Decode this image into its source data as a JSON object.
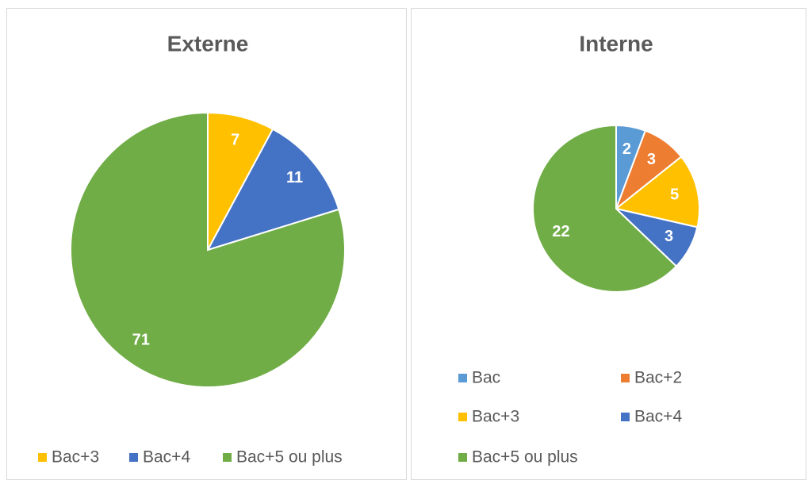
{
  "chart_data": [
    {
      "type": "pie",
      "title": "Externe",
      "categories": [
        "Bac+3",
        "Bac+4",
        "Bac+5 ou plus"
      ],
      "values": [
        7,
        11,
        71
      ],
      "colors": [
        "#ffc000",
        "#4472c4",
        "#70ad47"
      ]
    },
    {
      "type": "pie",
      "title": "Interne",
      "categories": [
        "Bac",
        "Bac+2",
        "Bac+3",
        "Bac+4",
        "Bac+5 ou plus"
      ],
      "values": [
        2,
        3,
        5,
        3,
        22
      ],
      "colors": [
        "#5b9bd5",
        "#ed7d31",
        "#ffc000",
        "#4472c4",
        "#70ad47"
      ]
    }
  ]
}
